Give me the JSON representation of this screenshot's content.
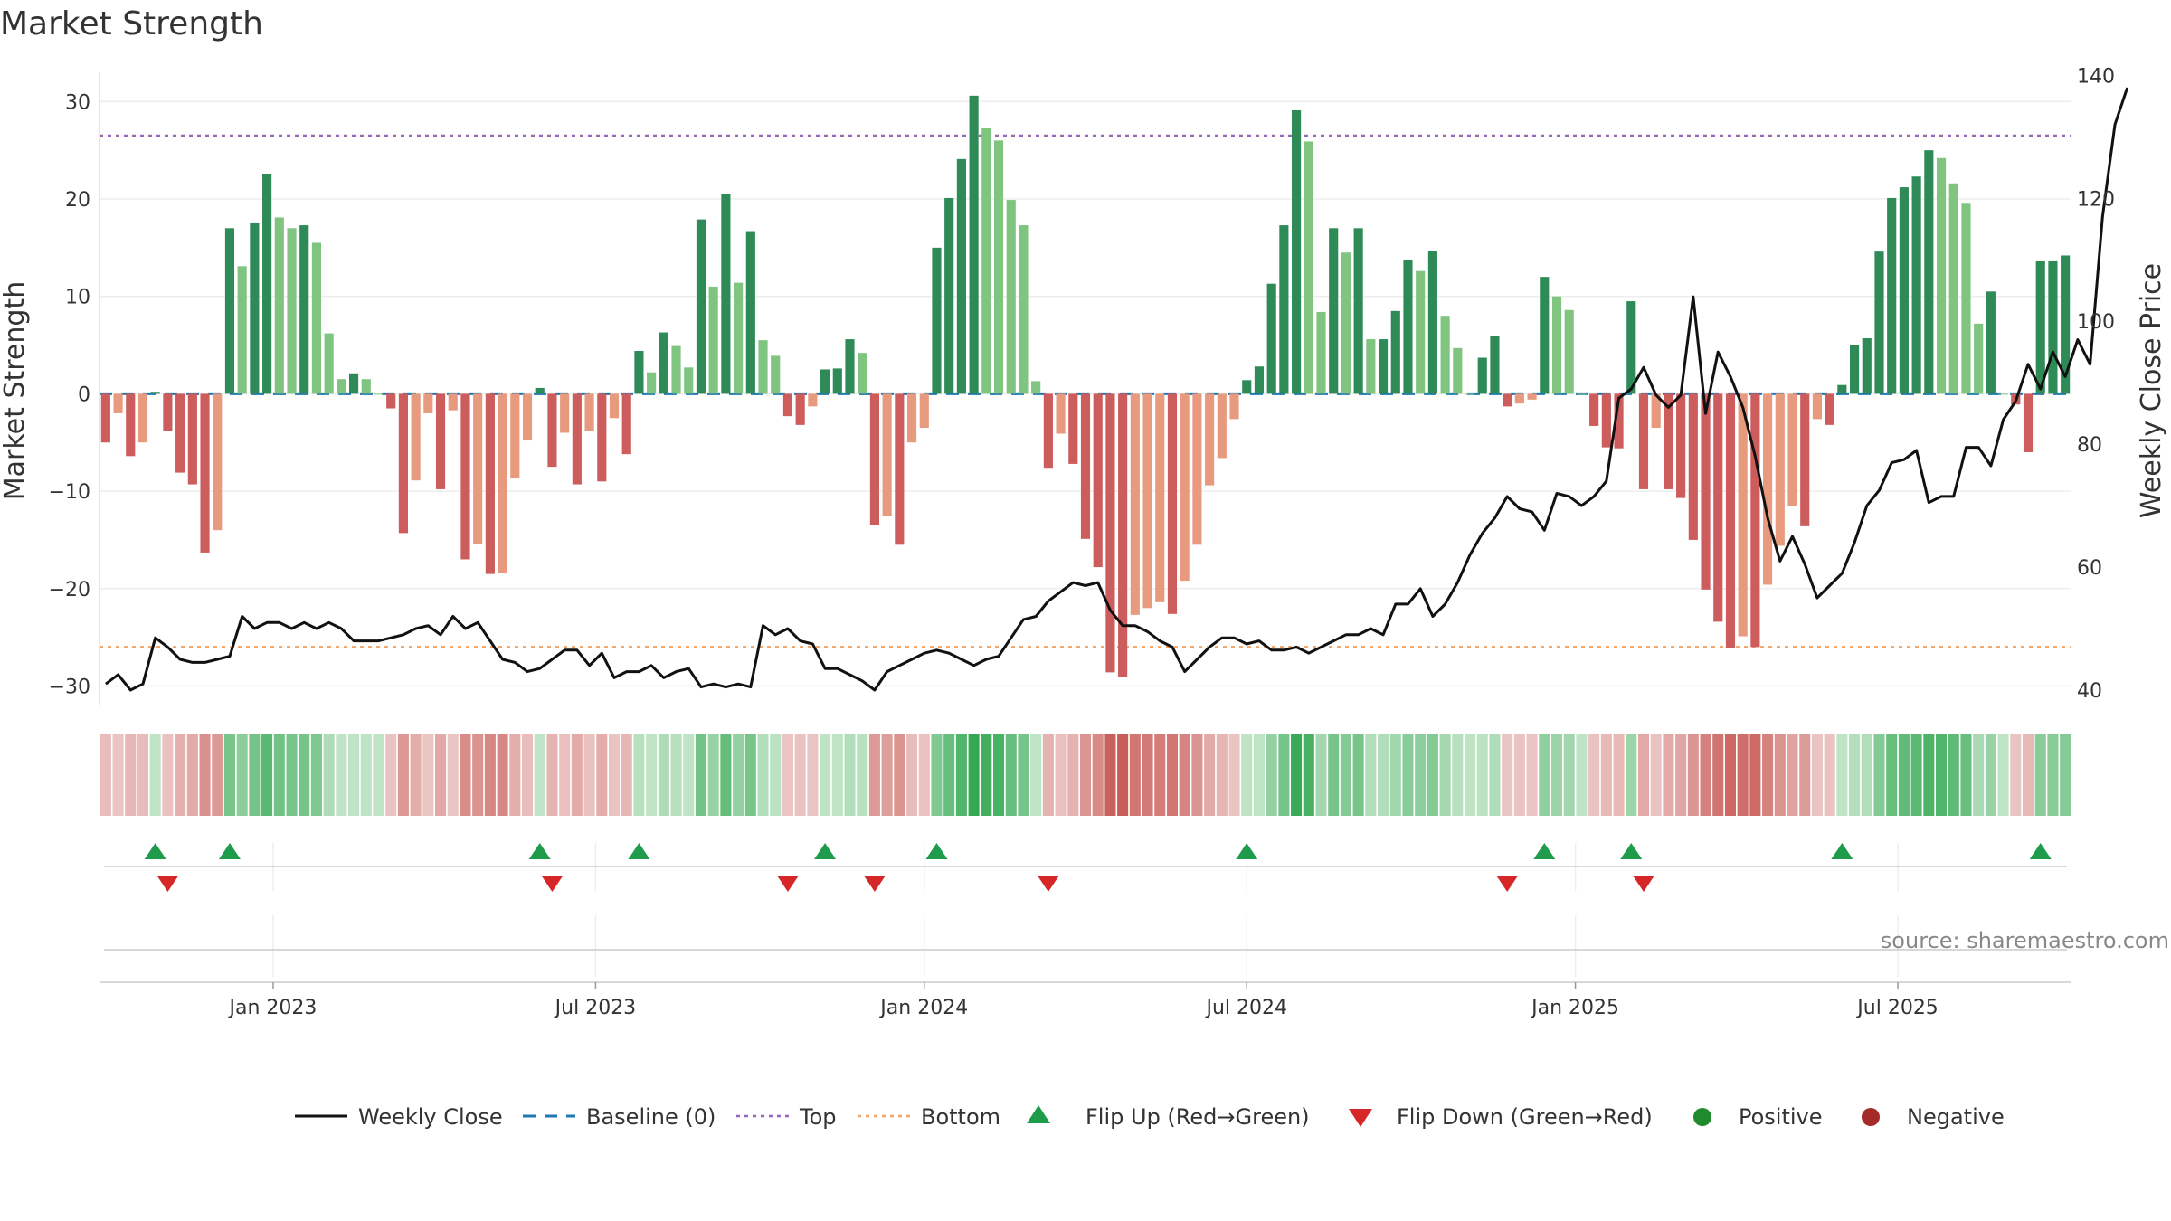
{
  "chart_data": {
    "type": "bar",
    "title": "Market Strength",
    "ylabel": "Market Strength",
    "y2label": "Weekly Close Price",
    "ylim": [
      -32,
      33
    ],
    "y2lim": [
      37.5,
      140.5
    ],
    "y_ticks": [
      30,
      20,
      10,
      0,
      -10,
      -20,
      -30
    ],
    "y_tick_labels": [
      "30",
      "20",
      "10",
      "0",
      "−10",
      "−20",
      "−30"
    ],
    "y2_ticks": [
      140,
      120,
      100,
      80,
      60,
      40
    ],
    "y2_tick_labels": [
      "140",
      "120",
      "100",
      "80",
      "60",
      "40"
    ],
    "top_line": 26.5,
    "bottom_line": -26,
    "x_tick_labels": [
      "Jan 2023",
      "Jul 2023",
      "Jan 2024",
      "Jul 2024",
      "Jan 2025",
      "Jul 2025"
    ],
    "x_tick_weeks": [
      14,
      40,
      66.5,
      92.5,
      119,
      145
    ],
    "strength": [
      -5,
      -2,
      -6.4,
      -5,
      0.2,
      -3.8,
      -8.1,
      -9.3,
      -16.3,
      -14,
      17,
      13.1,
      17.5,
      22.6,
      18.1,
      17,
      17.3,
      15.5,
      6.2,
      1.5,
      2.1,
      1.5,
      0,
      -1.5,
      -14.3,
      -8.9,
      -2,
      -9.8,
      -1.7,
      -17,
      -15.4,
      -18.5,
      -18.4,
      -8.7,
      -4.8,
      0.6,
      -7.5,
      -4,
      -9.3,
      -3.8,
      -9,
      -2.5,
      -6.2,
      4.4,
      2.2,
      6.3,
      4.9,
      2.7,
      17.9,
      11,
      20.5,
      11.4,
      16.7,
      5.5,
      3.9,
      -2.3,
      -3.2,
      -1.3,
      2.5,
      2.6,
      5.6,
      4.2,
      -13.5,
      -12.5,
      -15.5,
      -5,
      -3.5,
      15,
      20.1,
      24.1,
      30.6,
      27.3,
      26,
      19.9,
      17.3,
      1.3,
      -7.6,
      -4.1,
      -7.2,
      -14.9,
      -17.8,
      -28.6,
      -29.1,
      -22.7,
      -22,
      -21.4,
      -22.6,
      -19.2,
      -15.5,
      -9.4,
      -6.6,
      -2.6,
      1.4,
      2.8,
      11.3,
      17.3,
      29.1,
      25.9,
      8.4,
      17,
      14.5,
      17,
      5.6,
      5.6,
      8.5,
      13.7,
      12.6,
      14.7,
      8,
      4.7,
      0,
      3.7,
      5.9,
      -1.3,
      -1,
      -0.6,
      12,
      10,
      8.6,
      0,
      -3.3,
      -5.5,
      -5.6,
      9.5,
      -9.8,
      -3.5,
      -9.8,
      -10.7,
      -15,
      -20.1,
      -23.4,
      -26.1,
      -24.9,
      -26,
      -19.6,
      -15.6,
      -11.5,
      -13.6,
      -2.6,
      -3.2,
      0.9,
      5,
      5.7,
      14.6,
      20.1,
      21.2,
      22.3,
      25,
      24.2,
      21.6,
      19.6,
      7.2,
      10.5,
      0,
      -1.1,
      -6,
      13.6,
      13.6,
      14.2
    ],
    "weekly_close": [
      41,
      42.5,
      40,
      41,
      48.5,
      47,
      45,
      44.5,
      44.5,
      45,
      45.5,
      52,
      50,
      51,
      51,
      50,
      51,
      50,
      51,
      50,
      48,
      48,
      48,
      48.5,
      49,
      50,
      50.5,
      49,
      52,
      50,
      51,
      48,
      45,
      44.5,
      43,
      43.5,
      45,
      46.5,
      46.5,
      44,
      46,
      42,
      43,
      43,
      44,
      42,
      43,
      43.5,
      40.5,
      41,
      40.5,
      41,
      40.5,
      50.5,
      49,
      50,
      48,
      47.5,
      43.5,
      43.5,
      42.5,
      41.5,
      40,
      43,
      44,
      45,
      46,
      46.5,
      46,
      45,
      44,
      45,
      45.5,
      48.5,
      51.5,
      52,
      54.5,
      56,
      57.5,
      57,
      57.5,
      53,
      50.5,
      50.5,
      49.5,
      48,
      47,
      43,
      45,
      47,
      48.5,
      48.5,
      47.5,
      48,
      46.5,
      46.5,
      47,
      46,
      47,
      48,
      49,
      49,
      50,
      49,
      54,
      54,
      56.5,
      52,
      54,
      57.5,
      62,
      65.5,
      68,
      71.5,
      69.5,
      69,
      66,
      72,
      71.5,
      70,
      71.5,
      74,
      87.5,
      89,
      92.5,
      88,
      86,
      88,
      104,
      85,
      95,
      91,
      86,
      78,
      68,
      61,
      65,
      60.5,
      55,
      57,
      59,
      64,
      70,
      72.5,
      77,
      77.5,
      79,
      70.5,
      71.5,
      71.5,
      79.5,
      79.5,
      76.5,
      84,
      87,
      93,
      89,
      95,
      91,
      97,
      93,
      117,
      132,
      138
    ]
  },
  "legend": {
    "weekly_close": "Weekly Close",
    "baseline": "Baseline (0)",
    "top": "Top",
    "bottom": "Bottom",
    "flip_up": "Flip Up (Red→Green)",
    "flip_down": "Flip Down (Green→Red)",
    "positive": "Positive",
    "negative": "Negative"
  },
  "source": "source: sharemaestro.com",
  "colors": {
    "pos_dark": "#2e8b57",
    "pos_light": "#7fc47f",
    "neg_dark": "#cd5c5c",
    "neg_light": "#e89a7e",
    "line": "#111111",
    "baseline": "#1f77b4",
    "top": "#9467bd",
    "bottom": "#f4a261",
    "flip_up": "#1e9c4b",
    "flip_down": "#d62728",
    "positive_dot": "#1f8b2c",
    "negative_dot": "#a52a2a"
  }
}
